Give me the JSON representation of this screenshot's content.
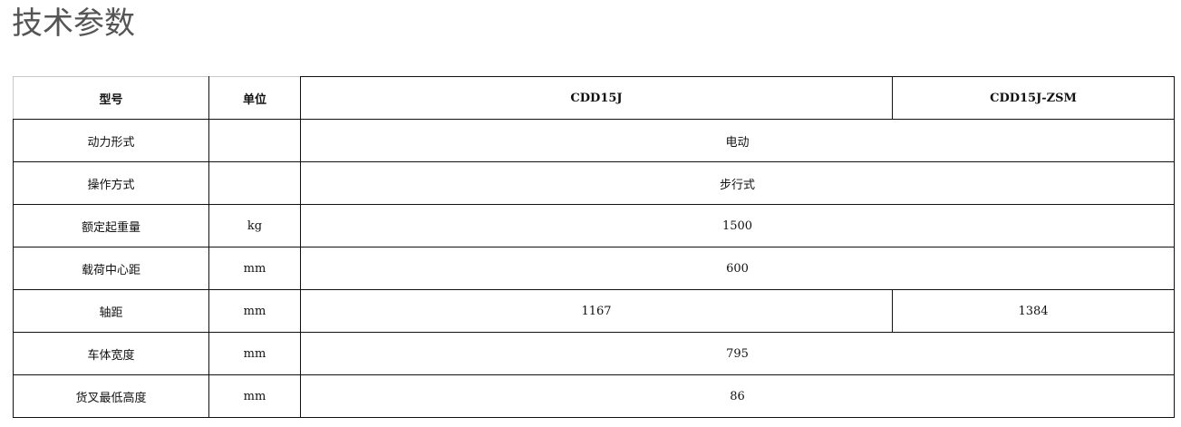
{
  "title": "技术参数",
  "table": {
    "headers": [
      "型号",
      "单位",
      "CDD15J",
      "CDD15J-ZSM"
    ],
    "rows": [
      {
        "param": "动力形式",
        "unit": "",
        "values": [
          "电动"
        ]
      },
      {
        "param": "操作方式",
        "unit": "",
        "values": [
          "步行式"
        ]
      },
      {
        "param": "额定起重量",
        "unit": "kg",
        "values": [
          "1500"
        ]
      },
      {
        "param": "载荷中心距",
        "unit": "mm",
        "values": [
          "600"
        ]
      },
      {
        "param": "轴距",
        "unit": "mm",
        "values": [
          "1167",
          "1384"
        ]
      },
      {
        "param": "车体宽度",
        "unit": "mm",
        "values": [
          "795"
        ]
      },
      {
        "param": "货叉最低高度",
        "unit": "mm",
        "values": [
          "86"
        ]
      }
    ]
  }
}
